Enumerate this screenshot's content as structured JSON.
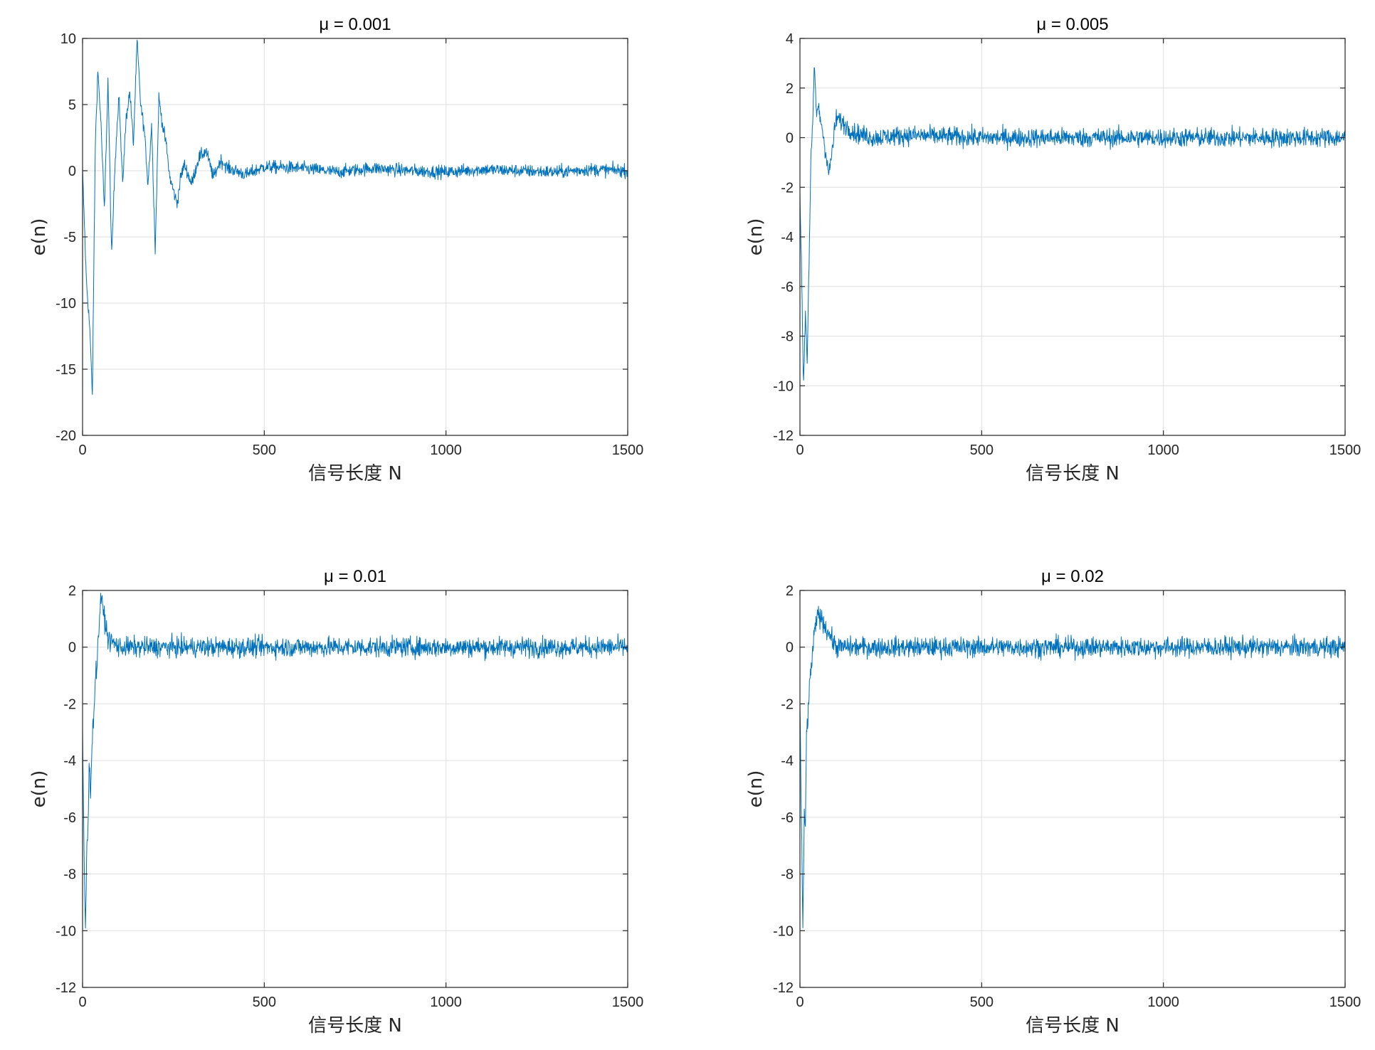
{
  "figure": {
    "background": "#ffffff",
    "line_color": "#0072bd"
  },
  "chart_data": [
    {
      "type": "line",
      "title": "μ = 0.001",
      "xlabel": "信号长度 N",
      "ylabel": "e(n)",
      "xlim": [
        0,
        1500
      ],
      "ylim": [
        -20,
        10
      ],
      "xticks": [
        0,
        500,
        1000,
        1500
      ],
      "yticks": [
        -20,
        -15,
        -10,
        -5,
        0,
        5,
        10
      ],
      "grid": true,
      "series": [
        {
          "x": [
            0,
            10,
            20,
            27,
            35,
            42,
            50,
            60,
            70,
            80,
            90,
            100,
            110,
            120,
            130,
            140,
            150,
            160,
            170,
            180,
            190,
            200,
            210,
            220,
            230,
            240,
            250,
            260,
            270,
            280,
            300,
            320,
            340,
            360,
            380,
            400,
            450,
            500,
            600,
            700,
            800,
            900,
            1000,
            1100,
            1200,
            1300,
            1400,
            1500
          ],
          "y": [
            0,
            -8,
            -12,
            -17,
            2,
            7.5,
            4,
            -3,
            6.8,
            -6.5,
            1,
            5.8,
            -1,
            4,
            6,
            2,
            9.8,
            5,
            3,
            -1,
            3.5,
            -6,
            5.5,
            3.5,
            2,
            -0.5,
            -1.5,
            -2.5,
            -0.5,
            0.5,
            -1,
            1,
            1.5,
            -0.5,
            0.8,
            0.2,
            -0.3,
            0.3,
            0.2,
            -0.1,
            0.2,
            0,
            -0.1,
            0.1,
            0,
            -0.1,
            0.1,
            0
          ],
          "noise_amplitude": 0.7
        }
      ]
    },
    {
      "type": "line",
      "title": "μ = 0.005",
      "xlabel": "信号长度 N",
      "ylabel": "e(n)",
      "xlim": [
        0,
        1500
      ],
      "ylim": [
        -12,
        4
      ],
      "xticks": [
        0,
        500,
        1000,
        1500
      ],
      "yticks": [
        -12,
        -10,
        -8,
        -6,
        -4,
        -2,
        0,
        2,
        4
      ],
      "grid": true,
      "series": [
        {
          "x": [
            0,
            5,
            10,
            15,
            20,
            25,
            30,
            35,
            40,
            45,
            50,
            60,
            80,
            100,
            150,
            200,
            300,
            500,
            800,
            1000,
            1200,
            1500
          ],
          "y": [
            -2,
            -6,
            -10,
            -7,
            -9,
            -5,
            -1,
            0.5,
            2.9,
            1,
            1.2,
            0.5,
            -1.5,
            0.8,
            0.2,
            0,
            0.1,
            0,
            0,
            0,
            0,
            0
          ],
          "noise_amplitude": 0.55
        }
      ]
    },
    {
      "type": "line",
      "title": "μ = 0.01",
      "xlabel": "信号长度 N",
      "ylabel": "e(n)",
      "xlim": [
        0,
        1500
      ],
      "ylim": [
        -12,
        2
      ],
      "xticks": [
        0,
        500,
        1000,
        1500
      ],
      "yticks": [
        -12,
        -10,
        -8,
        -6,
        -4,
        -2,
        0,
        2
      ],
      "grid": true,
      "series": [
        {
          "x": [
            0,
            5,
            8,
            12,
            15,
            18,
            22,
            26,
            30,
            35,
            40,
            50,
            70,
            100,
            200,
            500,
            1000,
            1500
          ],
          "y": [
            -3,
            -8,
            -10,
            -7,
            -6.5,
            -4,
            -5,
            -3.5,
            -2.5,
            -1.2,
            -0.5,
            1.8,
            0.3,
            0,
            0,
            0,
            0,
            0
          ],
          "noise_amplitude": 0.5
        }
      ]
    },
    {
      "type": "line",
      "title": "μ = 0.02",
      "xlabel": "信号长度 N",
      "ylabel": "e(n)",
      "xlim": [
        0,
        1500
      ],
      "ylim": [
        -12,
        2
      ],
      "xticks": [
        0,
        500,
        1000,
        1500
      ],
      "yticks": [
        -12,
        -10,
        -8,
        -6,
        -4,
        -2,
        0,
        2
      ],
      "grid": true,
      "series": [
        {
          "x": [
            0,
            5,
            8,
            12,
            15,
            18,
            22,
            26,
            30,
            40,
            50,
            100,
            500,
            1000,
            1500
          ],
          "y": [
            -2,
            -7,
            -10,
            -6,
            -6.3,
            -3,
            -2.5,
            -1.5,
            -0.8,
            0.5,
            1.2,
            0,
            0,
            0,
            0
          ],
          "noise_amplitude": 0.5
        }
      ]
    }
  ]
}
